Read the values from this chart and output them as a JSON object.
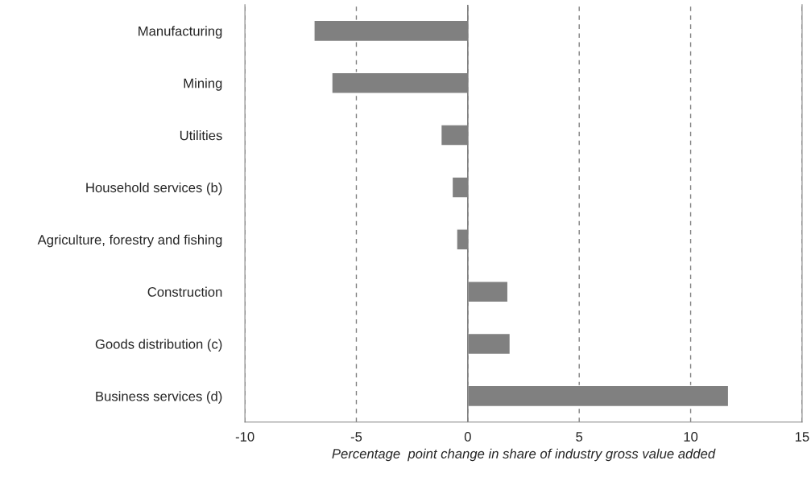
{
  "chart_data": {
    "type": "bar",
    "orientation": "horizontal",
    "categories": [
      "Manufacturing",
      "Mining",
      "Utilities",
      "Household services (b)",
      "Agriculture, forestry and fishing",
      "Construction",
      "Goods distribution (c)",
      "Business services (d)"
    ],
    "values": [
      -6.9,
      -6.1,
      -1.2,
      -0.7,
      -0.5,
      1.8,
      1.9,
      11.7
    ],
    "color": "#808080",
    "xlim": [
      -10,
      15
    ],
    "xticks": [
      -10,
      -5,
      0,
      5,
      10,
      15
    ],
    "xlabel": "Percentage  point change in share of industry gross value added",
    "grid": "x"
  }
}
